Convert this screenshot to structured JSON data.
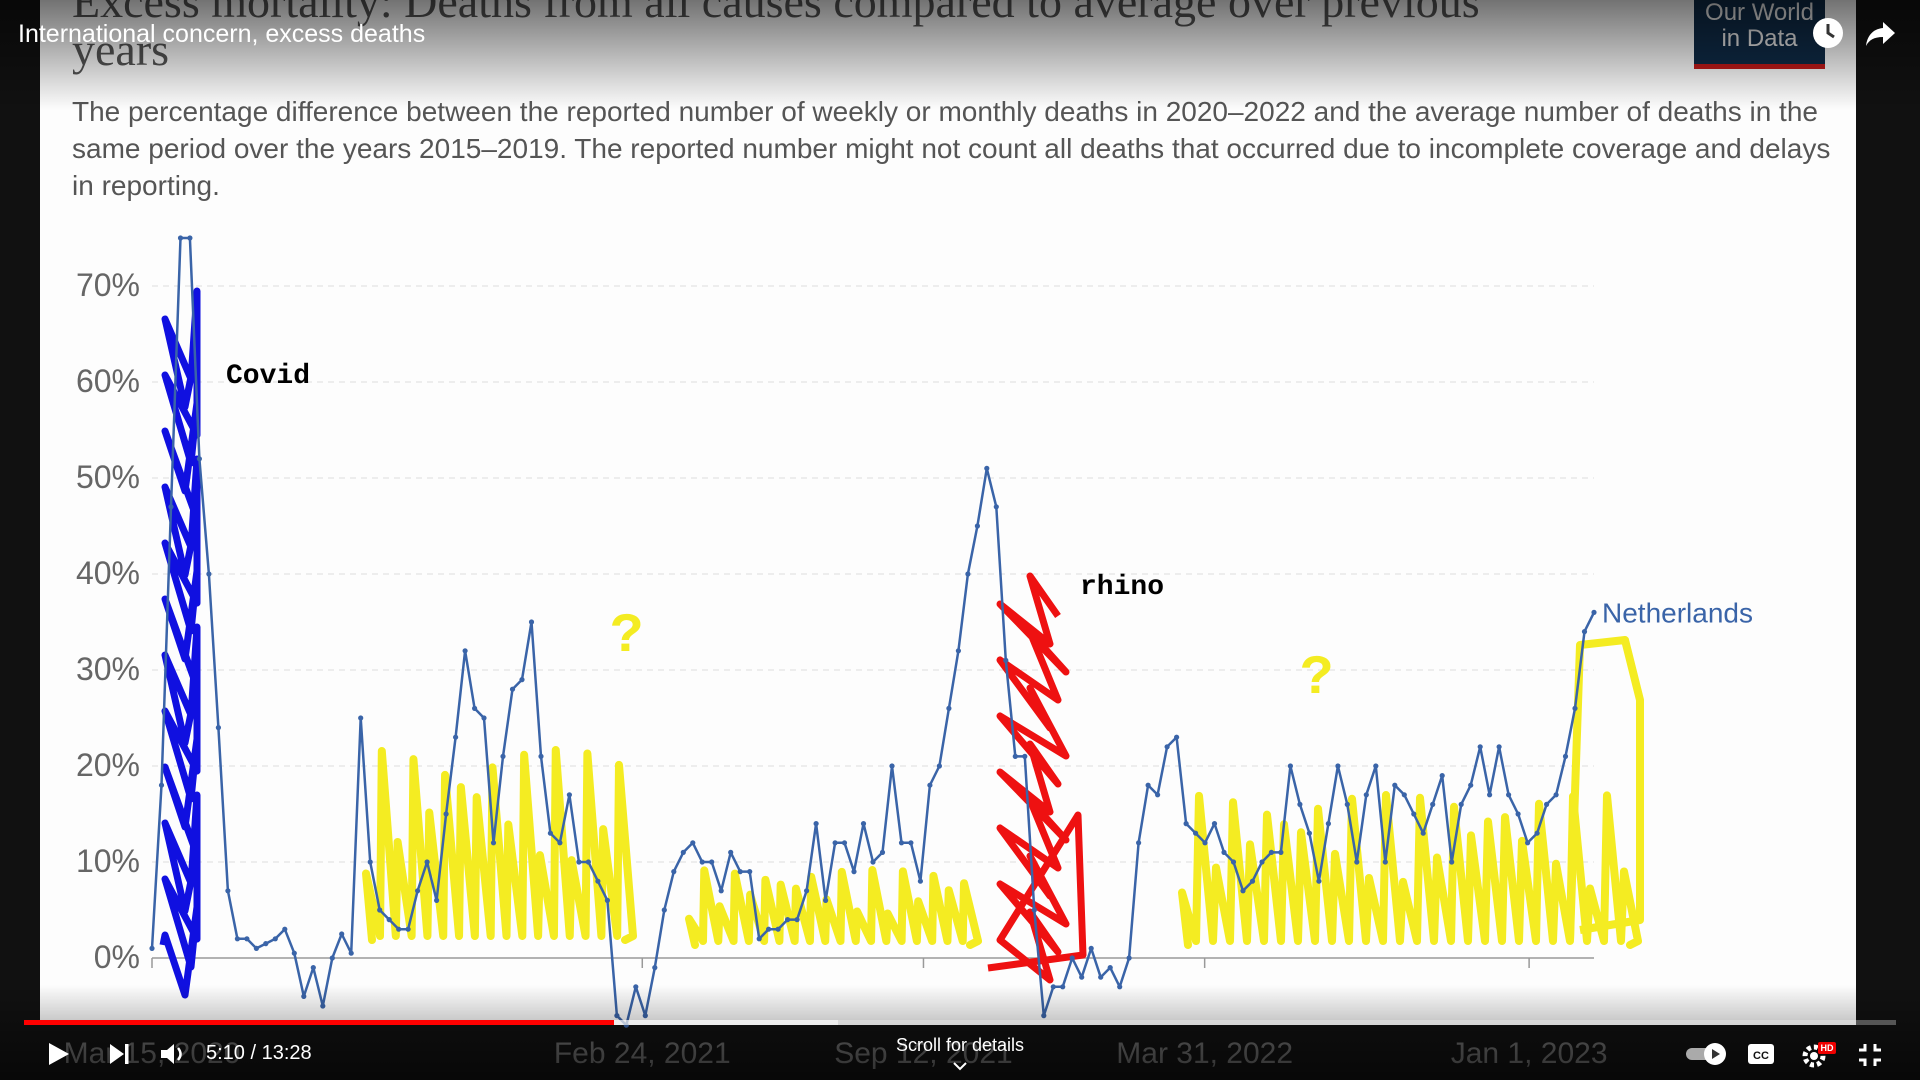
{
  "video": {
    "title": "International concern, excess deaths",
    "time_current": "5:10",
    "time_sep": " / ",
    "time_total": "13:28",
    "progress": 0.315,
    "buffered": 0.435,
    "scroll_hint": "Scroll for details",
    "hd_badge": "HD",
    "icons": [
      "clock-icon",
      "share-icon",
      "play-icon",
      "next-icon",
      "volume-icon",
      "autoplay-toggle",
      "captions-icon",
      "settings-icon",
      "exit-fullscreen-icon",
      "chevron-down-icon"
    ]
  },
  "slide": {
    "title": "Excess mortality: Deaths from all causes compared to average over previous years",
    "description": "The percentage difference between the reported number of weekly or monthly deaths in 2020–2022 and the average number of deaths in the same period over the years 2015–2019. The reported number might not count all deaths that occurred due to incomplete coverage and delays in reporting.",
    "logo_line1": "Our World",
    "logo_line2": "in Data"
  },
  "annotations": {
    "covid": "Covid",
    "rhino": "rhino",
    "question": "?",
    "colors": {
      "covid": "#1010e0",
      "rhino": "#ee1111",
      "yellow": "#f4ec22"
    }
  },
  "chart_data": {
    "type": "line",
    "y_ticks": [
      "0%",
      "10%",
      "20%",
      "30%",
      "40%",
      "50%",
      "60%",
      "70%"
    ],
    "x_ticks": [
      "Mar 15, 2020",
      "Feb 24, 2021",
      "Sep 12, 2021",
      "Mar 31, 2022",
      "Jan 1, 2023"
    ],
    "ylim": [
      0,
      70
    ],
    "grid": true,
    "series": [
      {
        "name": "Netherlands",
        "color": "#3a64a8",
        "values": [
          1,
          18,
          47,
          75,
          75,
          52,
          40,
          24,
          7,
          2,
          2,
          1,
          1.5,
          2,
          3,
          0.5,
          -4,
          -1,
          -5,
          0,
          2.5,
          0.5,
          25,
          10,
          5,
          4,
          3,
          3,
          7,
          10,
          6,
          15,
          23,
          32,
          26,
          25,
          12,
          21,
          28,
          29,
          35,
          21,
          13,
          12,
          17,
          10,
          10,
          8,
          6,
          -6,
          -7,
          -3,
          -6,
          -1,
          5,
          9,
          11,
          12,
          10,
          10,
          7,
          11,
          9,
          9,
          2,
          3,
          3,
          4,
          4,
          7,
          14,
          6,
          12,
          12,
          9,
          14,
          10,
          11,
          20,
          12,
          12,
          8,
          18,
          20,
          26,
          32,
          40,
          45,
          51,
          47,
          31,
          21,
          21,
          5,
          -6,
          -3,
          -3,
          0,
          -2,
          1,
          -2,
          -1,
          -3,
          0,
          12,
          18,
          17,
          22,
          23,
          14,
          13,
          12,
          14,
          11,
          10,
          7,
          8,
          10,
          11,
          11,
          20,
          16,
          13,
          8,
          14,
          20,
          16,
          10,
          17,
          20,
          10,
          18,
          17,
          15,
          13,
          16,
          19,
          10,
          16,
          18,
          22,
          17,
          22,
          17,
          15,
          12,
          13,
          16,
          17,
          21,
          26,
          34,
          36
        ]
      }
    ]
  }
}
